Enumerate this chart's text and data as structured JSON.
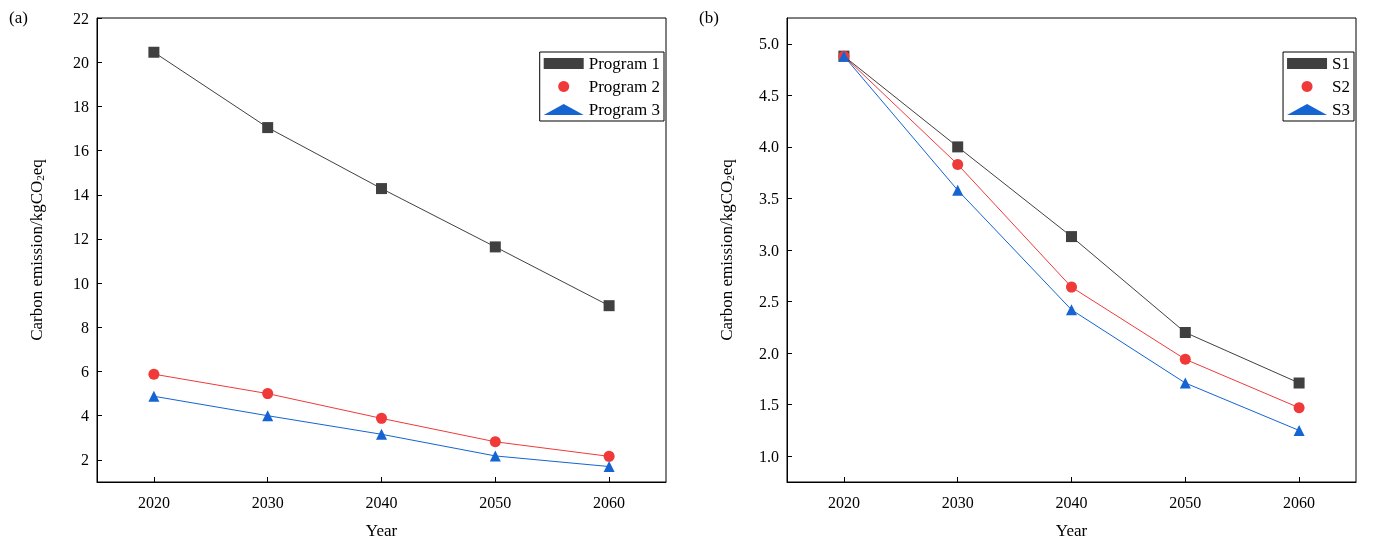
{
  "chart_data": [
    {
      "type": "line",
      "title": "(a)",
      "xlabel": "Year",
      "ylabel": "Carbon emission/kgCO$_{2}$eq",
      "x": [
        2020,
        2030,
        2040,
        2050,
        2060
      ],
      "xlim": [
        2015,
        2065
      ],
      "xticks": [
        2020,
        2030,
        2040,
        2050,
        2060
      ],
      "ylim": [
        1,
        22
      ],
      "yticks": [
        2,
        4,
        6,
        8,
        10,
        12,
        14,
        16,
        18,
        20,
        22
      ],
      "grid": false,
      "legend": "top right",
      "series": [
        {
          "name": "Program 1",
          "color": "#404040",
          "marker": "square",
          "values": [
            20.45,
            17.04,
            14.28,
            11.64,
            8.98
          ]
        },
        {
          "name": "Program 2",
          "color": "#f03a3a",
          "marker": "circle",
          "values": [
            5.88,
            5.0,
            3.88,
            2.82,
            2.16
          ]
        },
        {
          "name": "Program 3",
          "color": "#1464d2",
          "marker": "triangle",
          "values": [
            4.88,
            4.0,
            3.16,
            2.18,
            1.7
          ]
        }
      ]
    },
    {
      "type": "line",
      "title": "(b)",
      "xlabel": "Year",
      "ylabel": "Carbon emission/kgCO$_{2}$eq",
      "x": [
        2020,
        2030,
        2040,
        2050,
        2060
      ],
      "xlim": [
        2015,
        2065
      ],
      "xticks": [
        2020,
        2030,
        2040,
        2050,
        2060
      ],
      "ylim": [
        0.75,
        5.25
      ],
      "yticks": [
        {
          "value": 1,
          "label": "1.0"
        },
        1.5,
        {
          "value": 2,
          "label": "2.0"
        },
        2.5,
        {
          "value": 3,
          "label": "3.0"
        },
        3.5,
        {
          "value": 4,
          "label": "4.0"
        },
        4.5,
        {
          "value": 5,
          "label": "5.0"
        }
      ],
      "grid": false,
      "legend": "top right",
      "series": [
        {
          "name": "S1",
          "color": "#404040",
          "marker": "square",
          "values": [
            4.88,
            4.0,
            3.13,
            2.2,
            1.71
          ]
        },
        {
          "name": "S2",
          "color": "#f03a3a",
          "marker": "circle",
          "values": [
            4.88,
            3.83,
            2.64,
            1.94,
            1.47
          ]
        },
        {
          "name": "S3",
          "color": "#1464d2",
          "marker": "triangle",
          "values": [
            4.88,
            3.58,
            2.42,
            1.71,
            1.25
          ]
        }
      ]
    }
  ]
}
